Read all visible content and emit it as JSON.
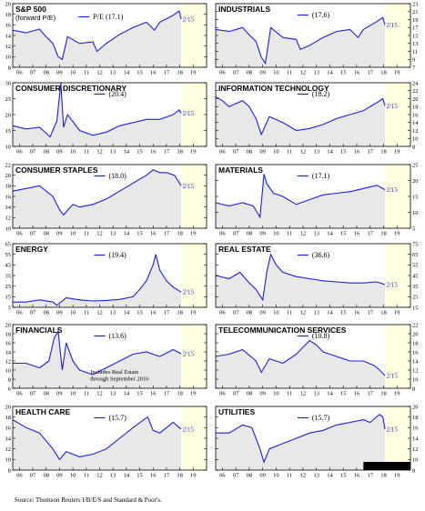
{
  "source": "Source: Thomson Reuters I/B/E/S and Standard & Poor's.",
  "x_ticks": [
    "06",
    "07",
    "08",
    "09",
    "10",
    "11",
    "12",
    "13",
    "14",
    "15",
    "16",
    "17",
    "18",
    "19"
  ],
  "end_label": "2/15",
  "colors": {
    "line": "#1f1fd6",
    "shade": "#e8e8e8",
    "forecast": "#ffffe0"
  },
  "chart_data": [
    {
      "type": "line",
      "title": "S&P 500",
      "subtitle": "(forward P/E)",
      "legend": "P/E (17.1)",
      "ylim": [
        8,
        20
      ],
      "yticks": [
        8,
        10,
        12,
        14,
        16,
        18,
        20
      ],
      "axis_side": "left",
      "x": [
        2005.5,
        2006.5,
        2007.5,
        2007.9,
        2008.5,
        2008.9,
        2009.2,
        2009.6,
        2010.5,
        2011.5,
        2011.8,
        2012.5,
        2013.5,
        2014.5,
        2015.5,
        2016.1,
        2016.5,
        2017.5,
        2017.95,
        2018.1
      ],
      "values": [
        15.0,
        14.5,
        15.2,
        14.0,
        12.5,
        10.0,
        9.5,
        13.8,
        12.5,
        12.8,
        11.0,
        12.5,
        14.2,
        15.5,
        16.5,
        15.0,
        16.5,
        17.8,
        18.6,
        17.1
      ]
    },
    {
      "type": "line",
      "title": "INDUSTRIALS",
      "legend": "(17.6)",
      "ylim": [
        7,
        23
      ],
      "yticks": [
        7,
        9,
        11,
        13,
        15,
        17,
        19,
        21,
        23
      ],
      "axis_side": "right",
      "x": [
        2005.5,
        2006.5,
        2007.5,
        2007.9,
        2008.5,
        2008.9,
        2009.2,
        2009.6,
        2010.5,
        2011.5,
        2011.8,
        2012.5,
        2013.5,
        2014.5,
        2015.5,
        2016.1,
        2016.5,
        2017.5,
        2017.95,
        2018.1
      ],
      "values": [
        16.5,
        16.0,
        17.0,
        15.5,
        13.5,
        9.5,
        8.0,
        17.0,
        14.5,
        14.0,
        11.5,
        12.5,
        14.5,
        16.0,
        16.5,
        14.5,
        16.5,
        18.5,
        19.5,
        17.6
      ]
    },
    {
      "type": "line",
      "title": "CONSUMER DISCRETIONARY",
      "legend": "(20.4)",
      "ylim": [
        10,
        30
      ],
      "yticks": [
        10,
        15,
        20,
        25,
        30
      ],
      "axis_side": "left",
      "x": [
        2005.5,
        2006.5,
        2007.5,
        2008.3,
        2008.8,
        2009.1,
        2009.3,
        2009.6,
        2010.5,
        2011.5,
        2012.5,
        2013.5,
        2014.5,
        2015.5,
        2016.5,
        2017.5,
        2017.95,
        2018.1
      ],
      "values": [
        16.5,
        15.5,
        16.0,
        13.0,
        18.0,
        30.0,
        16.0,
        20.0,
        15.0,
        13.5,
        14.5,
        16.5,
        17.5,
        18.5,
        18.5,
        20.0,
        21.5,
        20.4
      ]
    },
    {
      "type": "line",
      "title": "INFORMATION TECHNOLOGY",
      "legend": "(18.2)",
      "ylim": [
        8,
        24
      ],
      "yticks": [
        8,
        10,
        12,
        14,
        16,
        18,
        20,
        22,
        24
      ],
      "axis_side": "right",
      "x": [
        2005.5,
        2006.0,
        2006.5,
        2007.5,
        2008.0,
        2008.5,
        2008.9,
        2009.5,
        2010.5,
        2011.5,
        2012.5,
        2013.5,
        2014.5,
        2015.5,
        2016.5,
        2017.5,
        2017.95,
        2018.1
      ],
      "values": [
        20.5,
        19.5,
        18.0,
        19.5,
        18.0,
        15.0,
        11.0,
        15.5,
        14.0,
        12.0,
        12.5,
        13.5,
        15.0,
        16.0,
        17.0,
        19.0,
        20.0,
        18.2
      ]
    },
    {
      "type": "line",
      "title": "CONSUMER STAPLES",
      "legend": "(18.0)",
      "ylim": [
        10,
        22
      ],
      "yticks": [
        10,
        12,
        14,
        16,
        18,
        20,
        22
      ],
      "axis_side": "left",
      "x": [
        2005.5,
        2006.5,
        2007.5,
        2008.0,
        2008.5,
        2009.0,
        2009.3,
        2010.0,
        2010.5,
        2011.5,
        2012.5,
        2013.5,
        2014.5,
        2015.5,
        2016.0,
        2016.5,
        2017.0,
        2017.6,
        2018.1
      ],
      "values": [
        17.0,
        17.5,
        18.0,
        17.0,
        16.0,
        13.5,
        12.5,
        14.5,
        14.0,
        14.5,
        15.5,
        17.0,
        18.5,
        20.0,
        21.0,
        20.5,
        20.5,
        20.0,
        18.0
      ]
    },
    {
      "type": "line",
      "title": "MATERIALS",
      "legend": "(17.1)",
      "ylim": [
        5,
        25
      ],
      "yticks": [
        5,
        10,
        15,
        20,
        25
      ],
      "axis_side": "right",
      "x": [
        2005.5,
        2006.5,
        2007.5,
        2008.3,
        2008.8,
        2009.1,
        2009.3,
        2009.8,
        2010.5,
        2011.5,
        2012.5,
        2013.5,
        2014.5,
        2015.5,
        2016.5,
        2017.5,
        2018.1
      ],
      "values": [
        13.0,
        12.0,
        13.0,
        12.0,
        8.5,
        22.0,
        19.0,
        16.0,
        15.0,
        12.5,
        14.0,
        15.5,
        16.0,
        16.5,
        17.5,
        18.5,
        17.1
      ]
    },
    {
      "type": "line",
      "title": "ENERGY",
      "legend": "(19.4)",
      "ylim": [
        5,
        65
      ],
      "yticks": [
        5,
        15,
        25,
        35,
        45,
        55,
        65
      ],
      "axis_side": "left",
      "x": [
        2005.5,
        2006.5,
        2007.5,
        2008.5,
        2008.8,
        2009.5,
        2010.5,
        2011.5,
        2012.5,
        2013.5,
        2014.5,
        2015.0,
        2015.5,
        2016.0,
        2016.2,
        2016.5,
        2017.0,
        2017.5,
        2018.1
      ],
      "values": [
        10.0,
        10.0,
        12.0,
        10.0,
        7.0,
        14.0,
        12.0,
        11.0,
        11.5,
        12.5,
        15.0,
        22.0,
        30.0,
        45.0,
        55.0,
        40.0,
        30.0,
        24.0,
        19.4
      ]
    },
    {
      "type": "line",
      "title": "REAL ESTATE",
      "legend": "(36.6)",
      "ylim": [
        15,
        75
      ],
      "yticks": [
        15,
        25,
        35,
        45,
        55,
        65,
        75
      ],
      "axis_side": "right",
      "x": [
        2005.5,
        2006.5,
        2007.3,
        2008.0,
        2008.5,
        2009.0,
        2009.3,
        2009.6,
        2010.0,
        2010.5,
        2011.5,
        2012.5,
        2013.5,
        2014.5,
        2015.5,
        2016.5,
        2017.5,
        2018.1
      ],
      "values": [
        45.0,
        42.0,
        48.0,
        38.0,
        32.0,
        22.0,
        48.0,
        65.0,
        55.0,
        48.0,
        44.0,
        42.0,
        40.0,
        39.0,
        38.0,
        38.0,
        39.0,
        36.6
      ]
    },
    {
      "type": "line",
      "title": "FINANCIALS",
      "legend": "(13.6)",
      "note": [
        "Includes Real Estate",
        "through September 2016"
      ],
      "ylim": [
        6,
        20
      ],
      "yticks": [
        6,
        8,
        10,
        12,
        14,
        16,
        18,
        20
      ],
      "axis_side": "left",
      "x": [
        2005.5,
        2006.5,
        2007.5,
        2008.2,
        2008.6,
        2008.9,
        2009.2,
        2009.5,
        2010.0,
        2010.5,
        2011.5,
        2012.5,
        2013.5,
        2014.5,
        2015.5,
        2016.5,
        2017.5,
        2018.1
      ],
      "values": [
        11.5,
        11.5,
        10.5,
        12.0,
        17.0,
        18.5,
        10.0,
        16.0,
        12.0,
        10.0,
        9.0,
        10.5,
        12.0,
        13.5,
        14.0,
        13.0,
        14.5,
        13.6
      ]
    },
    {
      "type": "line",
      "title": "TELECOMMUNICATION SERVICES",
      "legend": "(10.8)",
      "ylim": [
        8,
        22
      ],
      "yticks": [
        8,
        10,
        12,
        14,
        16,
        18,
        20,
        22
      ],
      "axis_side": "right",
      "x": [
        2005.5,
        2006.5,
        2007.5,
        2008.5,
        2008.9,
        2009.5,
        2010.5,
        2011.5,
        2012.0,
        2012.5,
        2013.0,
        2013.5,
        2014.5,
        2015.5,
        2016.5,
        2017.3,
        2017.7,
        2018.1
      ],
      "values": [
        15.0,
        15.5,
        16.5,
        14.0,
        11.5,
        14.5,
        13.5,
        15.5,
        17.0,
        18.5,
        17.5,
        16.0,
        15.0,
        14.0,
        14.0,
        13.0,
        12.0,
        10.8
      ]
    },
    {
      "type": "line",
      "title": "HEALTH CARE",
      "legend": "(15.7)",
      "ylim": [
        8,
        20
      ],
      "yticks": [
        8,
        10,
        12,
        14,
        16,
        18,
        20
      ],
      "axis_side": "left",
      "x": [
        2005.5,
        2006.5,
        2007.5,
        2008.5,
        2009.0,
        2009.5,
        2010.5,
        2011.5,
        2012.5,
        2013.5,
        2014.5,
        2015.3,
        2015.6,
        2016.0,
        2016.5,
        2017.5,
        2018.1
      ],
      "values": [
        17.5,
        16.0,
        15.0,
        12.0,
        10.0,
        11.5,
        10.5,
        11.0,
        12.0,
        14.0,
        16.0,
        17.5,
        18.0,
        15.5,
        15.0,
        17.0,
        15.7
      ]
    },
    {
      "type": "line",
      "title": "UTILITIES",
      "legend": "(15.7)",
      "ylim": [
        8,
        20
      ],
      "yticks": [
        8,
        10,
        12,
        14,
        16,
        18,
        20
      ],
      "axis_side": "right",
      "x": [
        2005.5,
        2006.5,
        2007.5,
        2008.2,
        2008.8,
        2009.1,
        2009.5,
        2010.5,
        2011.5,
        2012.5,
        2013.5,
        2014.5,
        2015.5,
        2016.5,
        2017.0,
        2017.7,
        2017.95,
        2018.1
      ],
      "values": [
        15.0,
        15.0,
        16.5,
        16.0,
        12.0,
        9.5,
        12.0,
        13.0,
        14.0,
        15.0,
        15.5,
        16.5,
        17.0,
        17.5,
        17.0,
        18.5,
        18.0,
        15.7
      ]
    }
  ]
}
